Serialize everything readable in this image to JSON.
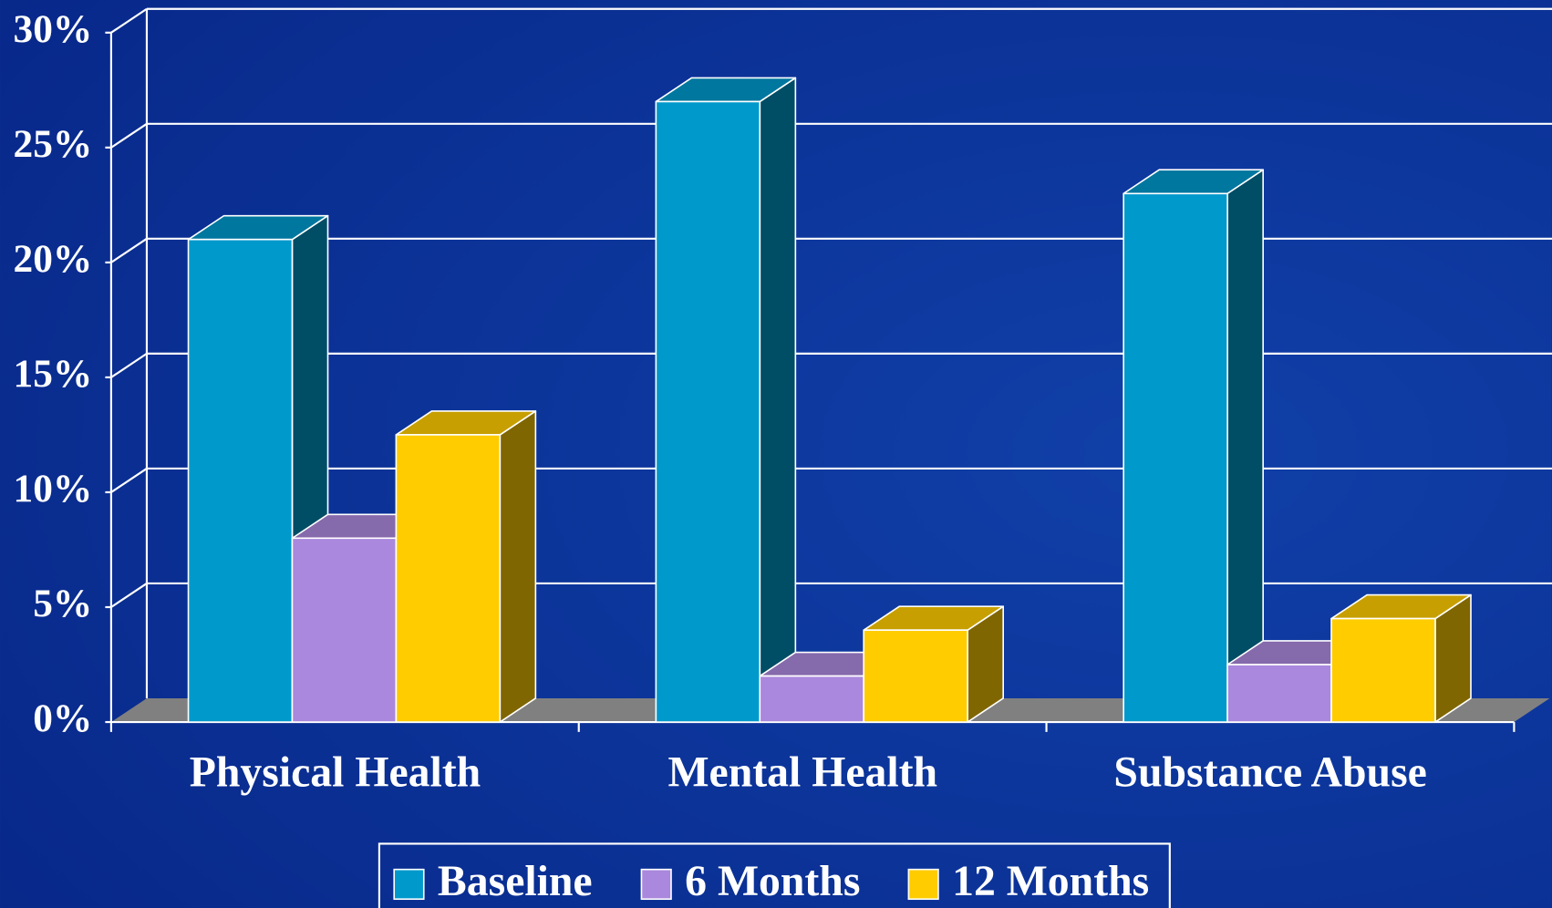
{
  "chart_data": {
    "type": "bar3d",
    "categories": [
      "Physical Health",
      "Mental Health",
      "Substance Abuse"
    ],
    "series": [
      {
        "name": "Baseline",
        "color": "#0099cc",
        "values": [
          21,
          27,
          23
        ]
      },
      {
        "name": "6 Months",
        "color": "#aa88dd",
        "values": [
          8,
          2,
          2.5
        ]
      },
      {
        "name": "12 Months",
        "color": "#ffcc00",
        "values": [
          12.5,
          4,
          4.5
        ]
      }
    ],
    "ylim": [
      0,
      30
    ],
    "yticks": [
      {
        "value": 0,
        "label": "0%"
      },
      {
        "value": 5,
        "label": "5%"
      },
      {
        "value": 10,
        "label": "10%"
      },
      {
        "value": 15,
        "label": "15%"
      },
      {
        "value": 20,
        "label": "20%"
      },
      {
        "value": 25,
        "label": "25%"
      },
      {
        "value": 30,
        "label": "30%"
      }
    ],
    "grid": true,
    "legend": "bottom"
  }
}
